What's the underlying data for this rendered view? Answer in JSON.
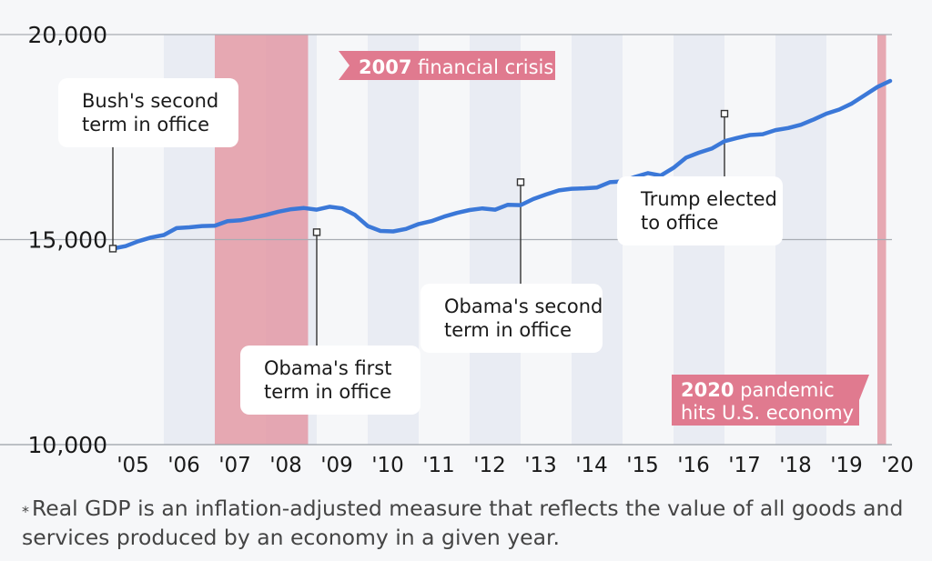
{
  "chart_data": {
    "type": "line",
    "x_tick_labels": [
      "'05",
      "'06",
      "'07",
      "'08",
      "'09",
      "'10",
      "'11",
      "'12",
      "'13",
      "'14",
      "'15",
      "'16",
      "'17",
      "'18",
      "'19",
      "'20"
    ],
    "y_tick_labels": [
      "20,000",
      "15,000",
      "10,000"
    ],
    "ylim": [
      10000,
      20000
    ],
    "xlim": [
      2005,
      2020.25
    ],
    "grid": "horizontal gridlines at y tick values; alternating vertical year shading",
    "series": [
      {
        "color": "#3b78d8",
        "x": [
          2005.0,
          2005.25,
          2005.5,
          2005.75,
          2006.0,
          2006.25,
          2006.5,
          2006.75,
          2007.0,
          2007.25,
          2007.5,
          2007.75,
          2008.0,
          2008.25,
          2008.5,
          2008.75,
          2009.0,
          2009.25,
          2009.5,
          2009.75,
          2010.0,
          2010.25,
          2010.5,
          2010.75,
          2011.0,
          2011.25,
          2011.5,
          2011.75,
          2012.0,
          2012.25,
          2012.5,
          2012.75,
          2013.0,
          2013.25,
          2013.5,
          2013.75,
          2014.0,
          2014.25,
          2014.5,
          2014.75,
          2015.0,
          2015.25,
          2015.5,
          2015.75,
          2016.0,
          2016.25,
          2016.5,
          2016.75,
          2017.0,
          2017.25,
          2017.5,
          2017.75,
          2018.0,
          2018.25,
          2018.5,
          2018.75,
          2019.0,
          2019.25,
          2019.5,
          2019.75,
          2020.0,
          2020.25
        ],
        "values": [
          14780,
          14840,
          14960,
          15050,
          15110,
          15280,
          15300,
          15330,
          15340,
          15450,
          15470,
          15530,
          15600,
          15680,
          15740,
          15770,
          15730,
          15800,
          15760,
          15600,
          15330,
          15210,
          15200,
          15260,
          15380,
          15450,
          15560,
          15650,
          15720,
          15760,
          15730,
          15850,
          15840,
          15990,
          16100,
          16200,
          16240,
          16250,
          16270,
          16400,
          16420,
          16530,
          16620,
          16560,
          16750,
          17000,
          17120,
          17220,
          17400,
          17480,
          17550,
          17570,
          17670,
          17720,
          17800,
          17930,
          18070,
          18170,
          18320,
          18520,
          18720,
          18870
        ]
      }
    ],
    "shaded_periods": [
      {
        "from": 2007.0,
        "to": 2008.83,
        "color": "#e39aa6"
      },
      {
        "from": 2020.0,
        "to": 2020.17,
        "color": "#e39aa6"
      }
    ],
    "markers": [
      {
        "x": 2005.0,
        "y": 14780,
        "label": "Bush's second\nterm in office"
      },
      {
        "x": 2009.0,
        "y": 15180,
        "label": "Obama's first\nterm in office"
      },
      {
        "x": 2013.0,
        "y": 16400,
        "label": "Obama's second\nterm in office"
      },
      {
        "x": 2017.0,
        "y": 18070,
        "label": "Trump elected\nto office"
      }
    ],
    "event_labels": [
      {
        "bold": "2007",
        "text": " financial crisis"
      },
      {
        "bold": "2020",
        "text": " pandemic\nhits U.S. economy"
      }
    ]
  },
  "footnote": {
    "star": "*",
    "text": "Real GDP is an inflation-adjusted measure that reflects the value of all goods and services produced by an economy in a given year."
  }
}
